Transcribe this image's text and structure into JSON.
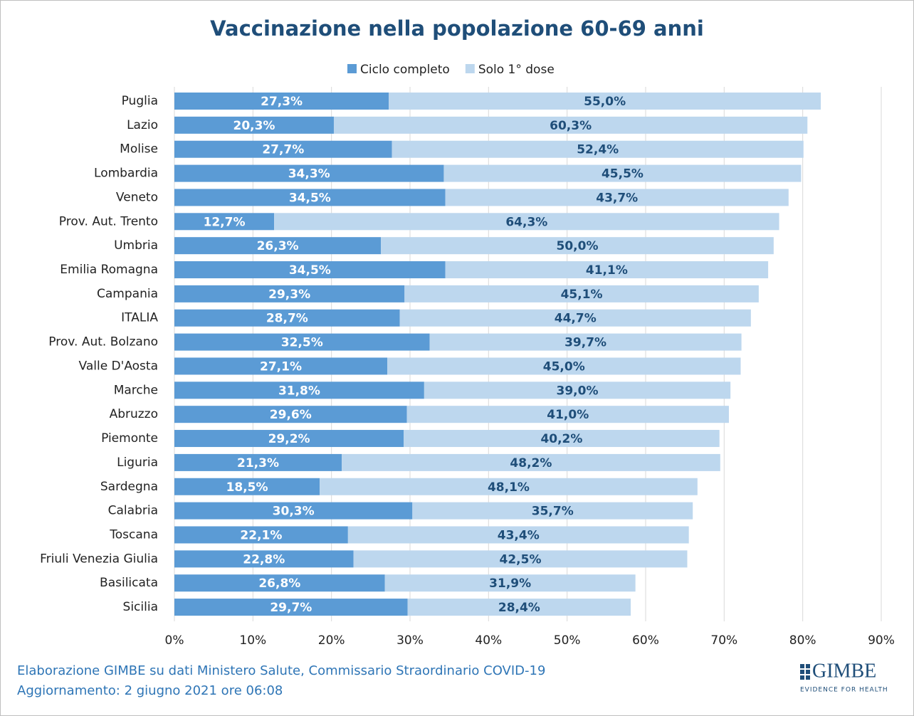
{
  "chart_data": {
    "type": "stacked-barh",
    "title": "Vaccinazione nella popolazione 60-69 anni",
    "categories": [
      "Puglia",
      "Lazio",
      "Molise",
      "Lombardia",
      "Veneto",
      "Prov. Aut. Trento",
      "Umbria",
      "Emilia Romagna",
      "Campania",
      "ITALIA",
      "Prov. Aut. Bolzano",
      "Valle D'Aosta",
      "Marche",
      "Abruzzo",
      "Piemonte",
      "Liguria",
      "Sardegna",
      "Calabria",
      "Toscana",
      "Friuli Venezia Giulia",
      "Basilicata",
      "Sicilia"
    ],
    "series": [
      {
        "name": "Ciclo completo",
        "color": "#5b9bd5",
        "values": [
          27.3,
          20.3,
          27.7,
          34.3,
          34.5,
          12.7,
          26.3,
          34.5,
          29.3,
          28.7,
          32.5,
          27.1,
          31.8,
          29.6,
          29.2,
          21.3,
          18.5,
          30.3,
          22.1,
          22.8,
          26.8,
          29.7
        ],
        "value_labels": [
          "27,3%",
          "20,3%",
          "27,7%",
          "34,3%",
          "34,5%",
          "12,7%",
          "26,3%",
          "34,5%",
          "29,3%",
          "28,7%",
          "32,5%",
          "27,1%",
          "31,8%",
          "29,6%",
          "29,2%",
          "21,3%",
          "18,5%",
          "30,3%",
          "22,1%",
          "22,8%",
          "26,8%",
          "29,7%"
        ]
      },
      {
        "name": "Solo 1° dose",
        "color": "#bdd7ee",
        "values": [
          55.0,
          60.3,
          52.4,
          45.5,
          43.7,
          64.3,
          50.0,
          41.1,
          45.1,
          44.7,
          39.7,
          45.0,
          39.0,
          41.0,
          40.2,
          48.2,
          48.1,
          35.7,
          43.4,
          42.5,
          31.9,
          28.4
        ],
        "value_labels": [
          "55,0%",
          "60,3%",
          "52,4%",
          "45,5%",
          "43,7%",
          "64,3%",
          "50,0%",
          "41,1%",
          "45,1%",
          "44,7%",
          "39,7%",
          "45,0%",
          "39,0%",
          "41,0%",
          "40,2%",
          "48,2%",
          "48,1%",
          "35,7%",
          "43,4%",
          "42,5%",
          "31,9%",
          "28,4%"
        ]
      }
    ],
    "xlim": [
      0,
      90
    ],
    "xticks": [
      {
        "value": 0,
        "label": "0%"
      },
      {
        "value": 10,
        "label": "10%"
      },
      {
        "value": 20,
        "label": "20%"
      },
      {
        "value": 30,
        "label": "30%"
      },
      {
        "value": 40,
        "label": "40%"
      },
      {
        "value": 50,
        "label": "50%"
      },
      {
        "value": 60,
        "label": "60%"
      },
      {
        "value": 70,
        "label": "70%"
      },
      {
        "value": 80,
        "label": "80%"
      },
      {
        "value": 90,
        "label": "90%"
      }
    ],
    "grid": true,
    "legend": "top",
    "source": "Elaborazione GIMBE su dati Ministero Salute, Commissario Straordinario COVID-19",
    "updated": "Aggiornamento: 2 giugno 2021 ore 06:08",
    "logo": {
      "name": "GIMBE",
      "tagline": "EVIDENCE FOR HEALTH"
    }
  }
}
